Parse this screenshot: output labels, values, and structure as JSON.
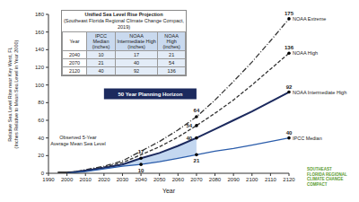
{
  "chart_data": {
    "type": "line",
    "title": "Unified Sea Level Rise Projection",
    "subtitle": "(Southeast Florida Regional Climate Change Compact, 2019)",
    "x_label": "Year",
    "y_label": [
      "Relative Sea Level Rise near Key West, FL",
      "(Inches Relative to Mean Sea Level in Year 2000)"
    ],
    "x": [
      1995,
      2000,
      2005,
      2010,
      2015,
      2020,
      2030,
      2040,
      2050,
      2060,
      2070,
      2080,
      2090,
      2100,
      2110,
      2120
    ],
    "series": [
      {
        "name": "Observed 5-Year Average Mean Sea Level",
        "color": "#000000",
        "line_style": "solid",
        "values": [
          1,
          1,
          2,
          3,
          5,
          null,
          null,
          null,
          null,
          null,
          null,
          null,
          null,
          null,
          null,
          null
        ]
      },
      {
        "name": "NOAA Extreme",
        "color": "#333333",
        "line_style": "dashdot",
        "values": [
          null,
          0,
          null,
          4,
          null,
          8,
          14,
          25,
          36,
          49,
          64,
          83,
          104,
          126,
          150,
          175
        ]
      },
      {
        "name": "NOAA High",
        "color": "#333333",
        "line_style": "dashed",
        "values": [
          null,
          0,
          null,
          3,
          null,
          7,
          12,
          21,
          30,
          41,
          54,
          68,
          83,
          100,
          118,
          136
        ]
      },
      {
        "name": "NOAA Intermediate High",
        "color": "#1c2a5e",
        "line_style": "solid",
        "values": [
          null,
          0,
          null,
          3,
          null,
          6,
          10,
          17,
          23,
          31,
          40,
          50,
          60,
          70,
          81,
          92
        ]
      },
      {
        "name": "IPCC Median",
        "color": "#2a5caa",
        "line_style": "solid",
        "values": [
          null,
          0,
          null,
          2,
          null,
          5,
          8,
          10,
          13,
          17,
          21,
          25,
          28,
          32,
          36,
          40
        ]
      }
    ],
    "xlim": [
      1990,
      2120
    ],
    "xticks": [
      1990,
      2000,
      2010,
      2020,
      2030,
      2040,
      2050,
      2060,
      2070,
      2080,
      2090,
      2100,
      2110,
      2120
    ],
    "ylim": [
      0,
      180
    ],
    "yticks": [
      0,
      20,
      40,
      60,
      80,
      100,
      120,
      140,
      160,
      180
    ],
    "grid": false,
    "table": {
      "columns": [
        "Year",
        "IPCC Median (inches)",
        "NOAA Intermediate High (inches)",
        "NOAA High (inches)"
      ],
      "rows": [
        [
          2040,
          10,
          17,
          21
        ],
        [
          2070,
          21,
          40,
          54
        ],
        [
          2120,
          40,
          92,
          136
        ]
      ]
    },
    "planning_horizon": {
      "label": "50 Year Planning Horizon",
      "start": 2020,
      "end": 2070
    },
    "point_labels": [
      {
        "x": 2040,
        "value": 17
      },
      {
        "x": 2040,
        "value": 10
      },
      {
        "x": 2070,
        "value": 64
      },
      {
        "x": 2070,
        "value": 54
      },
      {
        "x": 2070,
        "value": 40
      },
      {
        "x": 2070,
        "value": 21
      }
    ],
    "logo": "SOUTHEAST FLORIDA REGIONAL CLIMATE CHANGE COMPACT"
  }
}
